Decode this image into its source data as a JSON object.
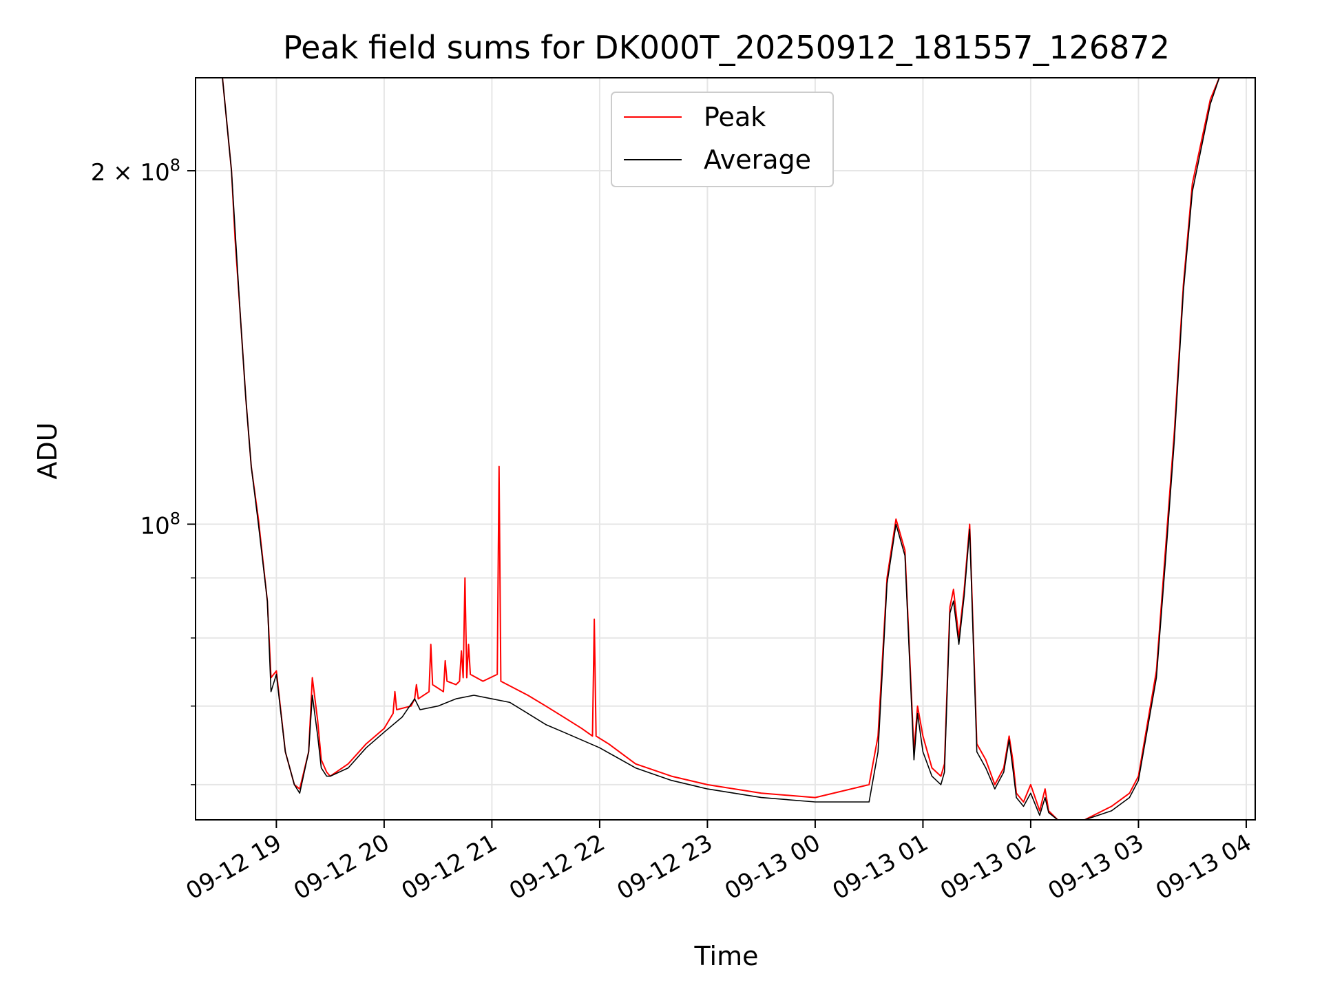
{
  "chart_data": {
    "type": "line",
    "title": "Peak field sums for DK000T_20250912_181557_126872",
    "xlabel": "Time",
    "ylabel": "ADU",
    "yscale": "log",
    "ylim": [
      56000000,
      240000000
    ],
    "xlim": [
      "2025-09-12 18:15",
      "2025-09-13 04:05"
    ],
    "grid": true,
    "legend_position": "upper center",
    "x_ticks": [
      {
        "t": "2025-09-12 19:00",
        "label": "09-12 19"
      },
      {
        "t": "2025-09-12 20:00",
        "label": "09-12 20"
      },
      {
        "t": "2025-09-12 21:00",
        "label": "09-12 21"
      },
      {
        "t": "2025-09-12 22:00",
        "label": "09-12 22"
      },
      {
        "t": "2025-09-12 23:00",
        "label": "09-12 23"
      },
      {
        "t": "2025-09-13 00:00",
        "label": "09-13 00"
      },
      {
        "t": "2025-09-13 01:00",
        "label": "09-13 01"
      },
      {
        "t": "2025-09-13 02:00",
        "label": "09-13 02"
      },
      {
        "t": "2025-09-13 03:00",
        "label": "09-13 03"
      },
      {
        "t": "2025-09-13 04:00",
        "label": "09-13 04"
      }
    ],
    "y_major_ticks": [
      {
        "value": 100000000,
        "mantissa": "",
        "base": "10",
        "exp": "8"
      },
      {
        "value": 200000000,
        "mantissa": "2 × ",
        "base": "10",
        "exp": "8"
      }
    ],
    "y_minor_ticks": [
      60000000,
      70000000,
      80000000,
      90000000
    ],
    "series": [
      {
        "name": "Peak",
        "color": "#ff0000",
        "x": [
          "2025-09-12 18:15",
          "2025-09-12 18:30",
          "2025-09-12 18:35",
          "2025-09-12 18:37",
          "2025-09-12 18:40",
          "2025-09-12 18:43",
          "2025-09-12 18:46",
          "2025-09-12 18:50",
          "2025-09-12 18:55",
          "2025-09-12 18:57",
          "2025-09-12 19:00",
          "2025-09-12 19:05",
          "2025-09-12 19:10",
          "2025-09-12 19:13",
          "2025-09-12 19:18",
          "2025-09-12 19:20",
          "2025-09-12 19:23",
          "2025-09-12 19:25",
          "2025-09-12 19:28",
          "2025-09-12 19:30",
          "2025-09-12 19:40",
          "2025-09-12 19:50",
          "2025-09-12 20:00",
          "2025-09-12 20:05",
          "2025-09-12 20:06",
          "2025-09-12 20:07",
          "2025-09-12 20:15",
          "2025-09-12 20:17",
          "2025-09-12 20:18",
          "2025-09-12 20:19",
          "2025-09-12 20:25",
          "2025-09-12 20:26",
          "2025-09-12 20:27",
          "2025-09-12 20:33",
          "2025-09-12 20:34",
          "2025-09-12 20:35",
          "2025-09-12 20:40",
          "2025-09-12 20:42",
          "2025-09-12 20:43",
          "2025-09-12 20:44",
          "2025-09-12 20:45",
          "2025-09-12 20:46",
          "2025-09-12 20:47",
          "2025-09-12 20:48",
          "2025-09-12 20:55",
          "2025-09-12 21:03",
          "2025-09-12 21:04",
          "2025-09-12 21:05",
          "2025-09-12 21:20",
          "2025-09-12 21:30",
          "2025-09-12 21:40",
          "2025-09-12 21:50",
          "2025-09-12 21:56",
          "2025-09-12 21:57",
          "2025-09-12 21:58",
          "2025-09-12 22:05",
          "2025-09-12 22:20",
          "2025-09-12 22:40",
          "2025-09-12 23:00",
          "2025-09-12 23:30",
          "2025-09-13 00:00",
          "2025-09-13 00:30",
          "2025-09-13 00:35",
          "2025-09-13 00:40",
          "2025-09-13 00:45",
          "2025-09-13 00:50",
          "2025-09-13 00:55",
          "2025-09-13 00:57",
          "2025-09-13 01:00",
          "2025-09-13 01:05",
          "2025-09-13 01:10",
          "2025-09-13 01:12",
          "2025-09-13 01:15",
          "2025-09-13 01:17",
          "2025-09-13 01:20",
          "2025-09-13 01:23",
          "2025-09-13 01:26",
          "2025-09-13 01:30",
          "2025-09-13 01:35",
          "2025-09-13 01:40",
          "2025-09-13 01:45",
          "2025-09-13 01:48",
          "2025-09-13 01:50",
          "2025-09-13 01:52",
          "2025-09-13 01:56",
          "2025-09-13 02:00",
          "2025-09-13 02:05",
          "2025-09-13 02:08",
          "2025-09-13 02:10",
          "2025-09-13 02:15",
          "2025-09-13 02:30",
          "2025-09-13 02:45",
          "2025-09-13 02:55",
          "2025-09-13 03:00",
          "2025-09-13 03:10",
          "2025-09-13 03:15",
          "2025-09-13 03:20",
          "2025-09-13 03:25",
          "2025-09-13 03:30",
          "2025-09-13 03:40",
          "2025-09-13 03:45",
          "2025-09-13 03:50",
          "2025-09-13 03:55",
          "2025-09-13 04:05"
        ],
        "y": [
          240000000,
          240000000,
          200000000,
          175000000,
          150000000,
          128000000,
          112000000,
          101000000,
          86000000,
          74000000,
          75000000,
          64000000,
          60000000,
          59500000,
          64000000,
          74000000,
          68000000,
          63000000,
          61500000,
          61000000,
          62500000,
          65000000,
          67000000,
          69000000,
          72000000,
          69500000,
          70000000,
          71000000,
          73000000,
          71000000,
          72000000,
          79000000,
          73000000,
          72000000,
          76500000,
          73500000,
          73000000,
          73500000,
          78000000,
          74000000,
          90000000,
          74000000,
          79000000,
          74500000,
          73500000,
          74500000,
          112000000,
          73500000,
          71500000,
          70000000,
          68500000,
          67000000,
          66000000,
          83000000,
          66000000,
          65000000,
          62500000,
          61000000,
          60000000,
          59000000,
          58500000,
          60000000,
          66000000,
          90000000,
          101000000,
          95000000,
          64000000,
          70000000,
          66000000,
          62000000,
          61000000,
          62500000,
          85000000,
          88000000,
          80000000,
          88000000,
          100000000,
          65000000,
          63000000,
          60000000,
          62000000,
          66000000,
          63000000,
          59000000,
          58000000,
          60000000,
          57000000,
          59500000,
          57000000,
          56000000,
          56000000,
          57500000,
          59000000,
          61000000,
          75000000,
          95000000,
          120000000,
          160000000,
          195000000,
          230000000,
          240000000,
          240000000,
          240000000,
          240000000
        ]
      },
      {
        "name": "Average",
        "color": "#000000",
        "x": [
          "2025-09-12 18:15",
          "2025-09-12 18:30",
          "2025-09-12 18:35",
          "2025-09-12 18:40",
          "2025-09-12 18:43",
          "2025-09-12 18:46",
          "2025-09-12 18:50",
          "2025-09-12 18:55",
          "2025-09-12 18:57",
          "2025-09-12 19:00",
          "2025-09-12 19:05",
          "2025-09-12 19:10",
          "2025-09-12 19:13",
          "2025-09-12 19:18",
          "2025-09-12 19:20",
          "2025-09-12 19:23",
          "2025-09-12 19:25",
          "2025-09-12 19:28",
          "2025-09-12 19:30",
          "2025-09-12 19:40",
          "2025-09-12 19:50",
          "2025-09-12 20:00",
          "2025-09-12 20:10",
          "2025-09-12 20:17",
          "2025-09-12 20:20",
          "2025-09-12 20:30",
          "2025-09-12 20:40",
          "2025-09-12 20:50",
          "2025-09-12 21:00",
          "2025-09-12 21:10",
          "2025-09-12 21:20",
          "2025-09-12 21:30",
          "2025-09-12 21:40",
          "2025-09-12 22:00",
          "2025-09-12 22:20",
          "2025-09-12 22:40",
          "2025-09-12 23:00",
          "2025-09-12 23:30",
          "2025-09-13 00:00",
          "2025-09-13 00:30",
          "2025-09-13 00:35",
          "2025-09-13 00:40",
          "2025-09-13 00:45",
          "2025-09-13 00:50",
          "2025-09-13 00:55",
          "2025-09-13 00:57",
          "2025-09-13 01:00",
          "2025-09-13 01:05",
          "2025-09-13 01:10",
          "2025-09-13 01:12",
          "2025-09-13 01:15",
          "2025-09-13 01:17",
          "2025-09-13 01:20",
          "2025-09-13 01:23",
          "2025-09-13 01:26",
          "2025-09-13 01:30",
          "2025-09-13 01:35",
          "2025-09-13 01:40",
          "2025-09-13 01:45",
          "2025-09-13 01:48",
          "2025-09-13 01:50",
          "2025-09-13 01:52",
          "2025-09-13 01:56",
          "2025-09-13 02:00",
          "2025-09-13 02:05",
          "2025-09-13 02:08",
          "2025-09-13 02:10",
          "2025-09-13 02:15",
          "2025-09-13 02:30",
          "2025-09-13 02:45",
          "2025-09-13 02:55",
          "2025-09-13 03:00",
          "2025-09-13 03:10",
          "2025-09-13 03:15",
          "2025-09-13 03:20",
          "2025-09-13 03:25",
          "2025-09-13 03:30",
          "2025-09-13 03:40",
          "2025-09-13 03:45",
          "2025-09-13 03:50",
          "2025-09-13 03:55",
          "2025-09-13 04:05"
        ],
        "y": [
          240000000,
          240000000,
          200000000,
          150000000,
          128000000,
          112000000,
          100000000,
          86000000,
          72000000,
          74500000,
          64000000,
          60000000,
          59000000,
          64000000,
          71500000,
          66000000,
          62000000,
          61000000,
          61000000,
          62000000,
          64500000,
          66500000,
          68500000,
          71000000,
          69500000,
          70000000,
          71000000,
          71500000,
          71000000,
          70500000,
          69000000,
          67500000,
          66500000,
          64500000,
          62000000,
          60500000,
          59500000,
          58500000,
          58000000,
          58000000,
          64000000,
          89000000,
          100000000,
          94000000,
          63000000,
          69000000,
          64000000,
          61000000,
          60000000,
          61500000,
          84000000,
          86000000,
          79000000,
          87000000,
          99000000,
          64000000,
          62000000,
          59500000,
          61500000,
          65500000,
          62000000,
          58500000,
          57500000,
          59000000,
          56500000,
          58500000,
          56800000,
          56000000,
          56000000,
          57000000,
          58500000,
          60500000,
          74000000,
          93000000,
          118000000,
          158000000,
          192000000,
          228000000,
          240000000,
          240000000,
          240000000,
          240000000
        ]
      }
    ]
  }
}
